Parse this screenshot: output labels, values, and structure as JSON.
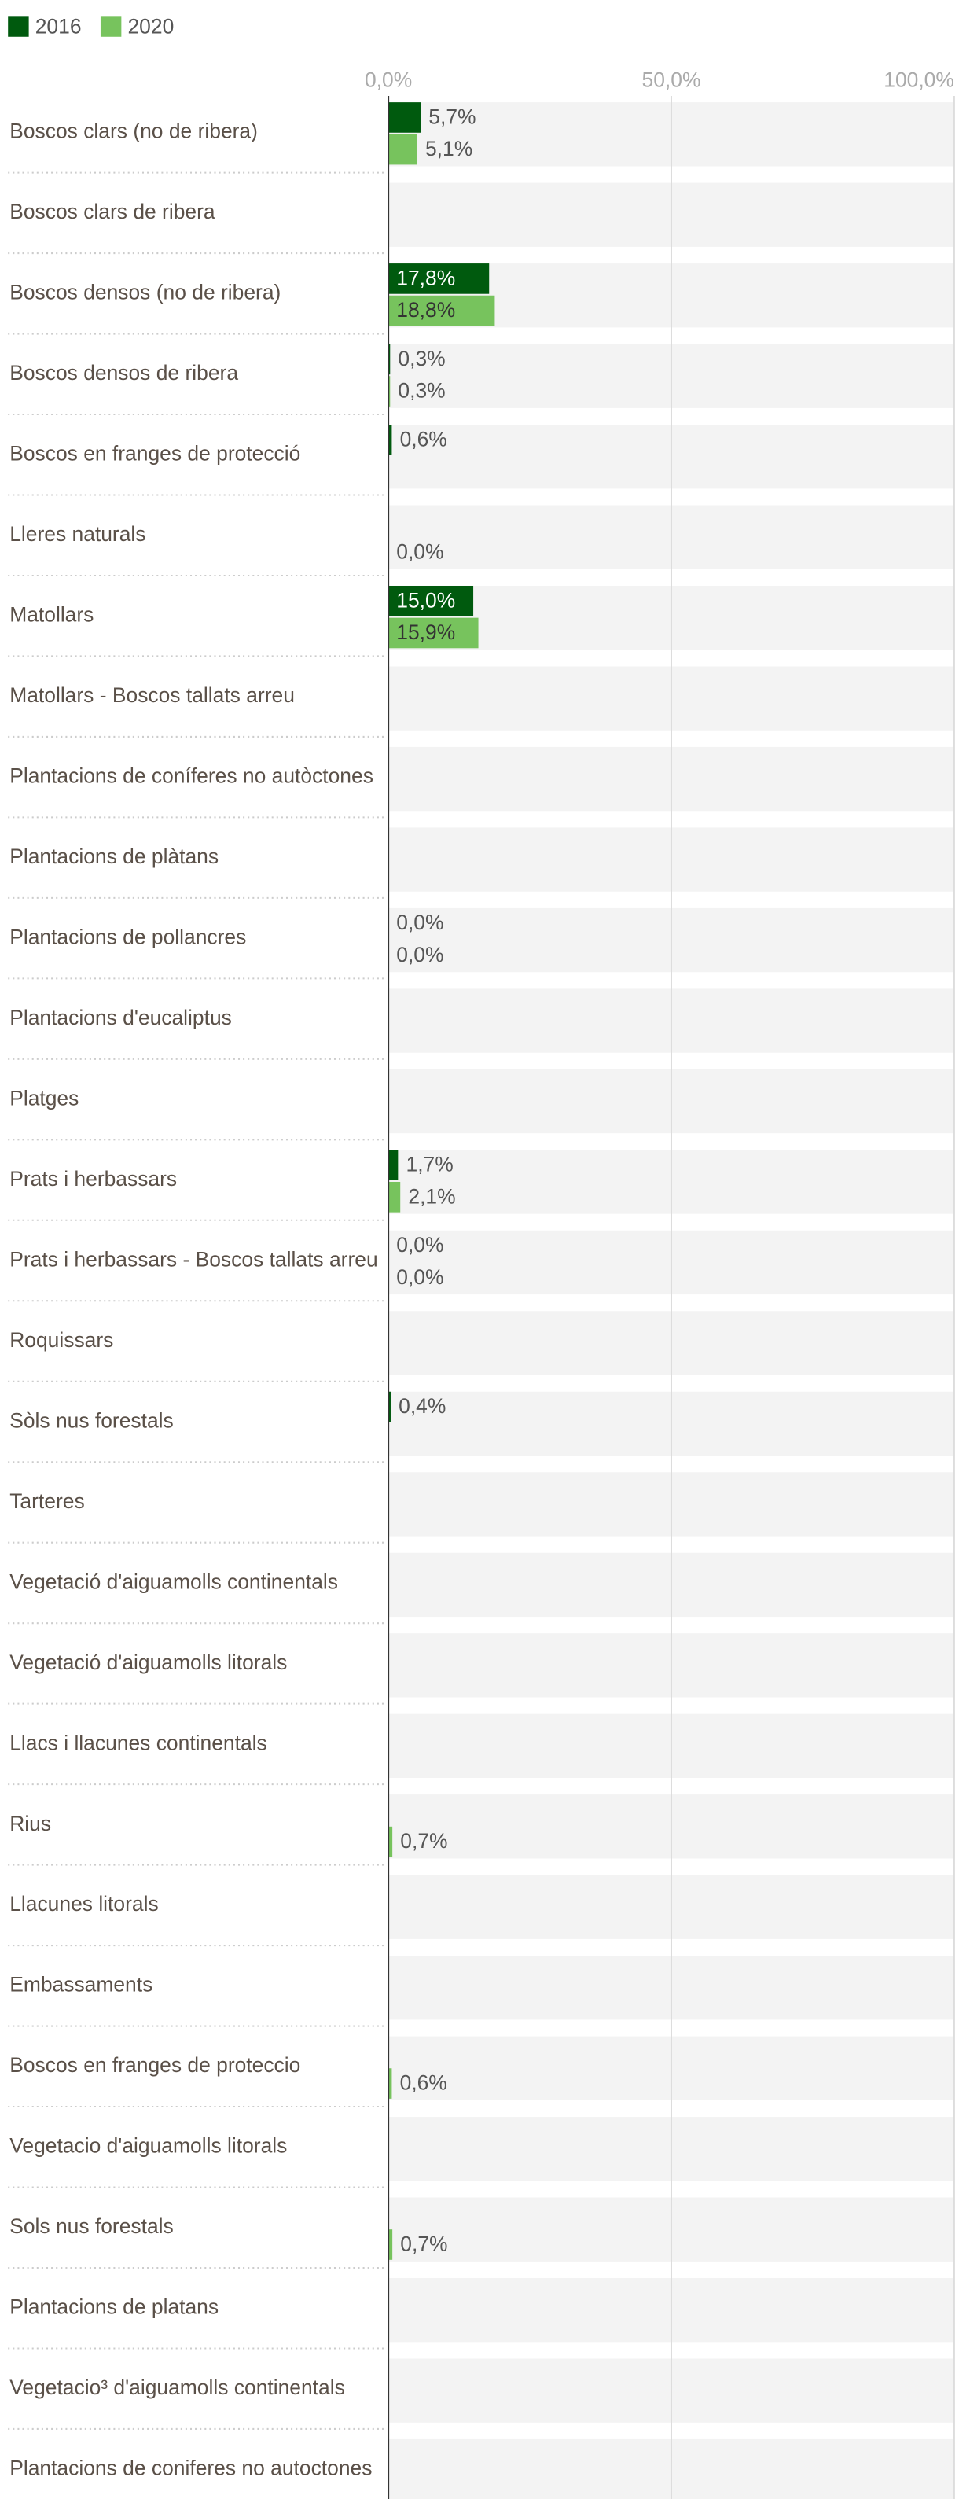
{
  "chart_data": {
    "type": "bar",
    "orientation": "horizontal",
    "categories": [
      "Boscos clars (no de ribera)",
      "Boscos clars de ribera",
      "Boscos densos (no de ribera)",
      "Boscos densos de ribera",
      "Boscos en franges de protecció",
      "Lleres naturals",
      "Matollars",
      "Matollars - Boscos tallats arreu",
      "Plantacions de coníferes no autòctones",
      "Plantacions de plàtans",
      "Plantacions de pollancres",
      "Plantacions d'eucaliptus",
      "Platges",
      "Prats i herbassars",
      "Prats i herbassars - Boscos tallats arreu",
      "Roquissars",
      "Sòls nus forestals",
      "Tarteres",
      "Vegetació d'aiguamolls continentals",
      "Vegetació d'aiguamolls litorals",
      "Llacs i llacunes continentals",
      "Rius",
      "Llacunes litorals",
      "Embassaments",
      "Boscos en franges de proteccio",
      "Vegetacio d'aiguamolls litorals",
      "Sols nus forestals",
      "Plantacions de platans",
      "Vegetacio³ d'aiguamolls continentals",
      "Plantacions de coniferes no autoctones"
    ],
    "series": [
      {
        "name": "2016",
        "color": "#005a0e",
        "values": [
          5.7,
          null,
          17.8,
          0.3,
          0.6,
          null,
          15.0,
          null,
          null,
          null,
          0.0,
          null,
          null,
          1.7,
          0.0,
          null,
          0.4,
          null,
          null,
          null,
          null,
          null,
          null,
          null,
          null,
          null,
          null,
          null,
          null,
          null
        ],
        "value_labels": [
          "5,7%",
          null,
          "17,8%",
          "0,3%",
          "0,6%",
          null,
          "15,0%",
          null,
          null,
          null,
          "0,0%",
          null,
          null,
          "1,7%",
          "0,0%",
          null,
          "0,4%",
          null,
          null,
          null,
          null,
          null,
          null,
          null,
          null,
          null,
          null,
          null,
          null,
          null
        ]
      },
      {
        "name": "2020",
        "color": "#77c35d",
        "values": [
          5.1,
          null,
          18.8,
          0.3,
          null,
          0.0,
          15.9,
          null,
          null,
          null,
          0.0,
          null,
          null,
          2.1,
          0.0,
          null,
          null,
          null,
          null,
          null,
          null,
          0.7,
          null,
          null,
          0.6,
          null,
          0.7,
          null,
          null,
          null
        ],
        "value_labels": [
          "5,1%",
          null,
          "18,8%",
          "0,3%",
          null,
          "0,0%",
          "15,9%",
          null,
          null,
          null,
          "0,0%",
          null,
          null,
          "2,1%",
          "0,0%",
          null,
          null,
          null,
          null,
          null,
          null,
          "0,7%",
          null,
          null,
          "0,6%",
          null,
          "0,7%",
          null,
          null,
          null
        ]
      }
    ],
    "xlim": [
      0,
      100
    ],
    "xticks": [
      {
        "value": 0,
        "label": "0,0%"
      },
      {
        "value": 50,
        "label": "50,0%"
      },
      {
        "value": 100,
        "label": "100,0%"
      }
    ],
    "grid": true,
    "legend": "top-left"
  }
}
